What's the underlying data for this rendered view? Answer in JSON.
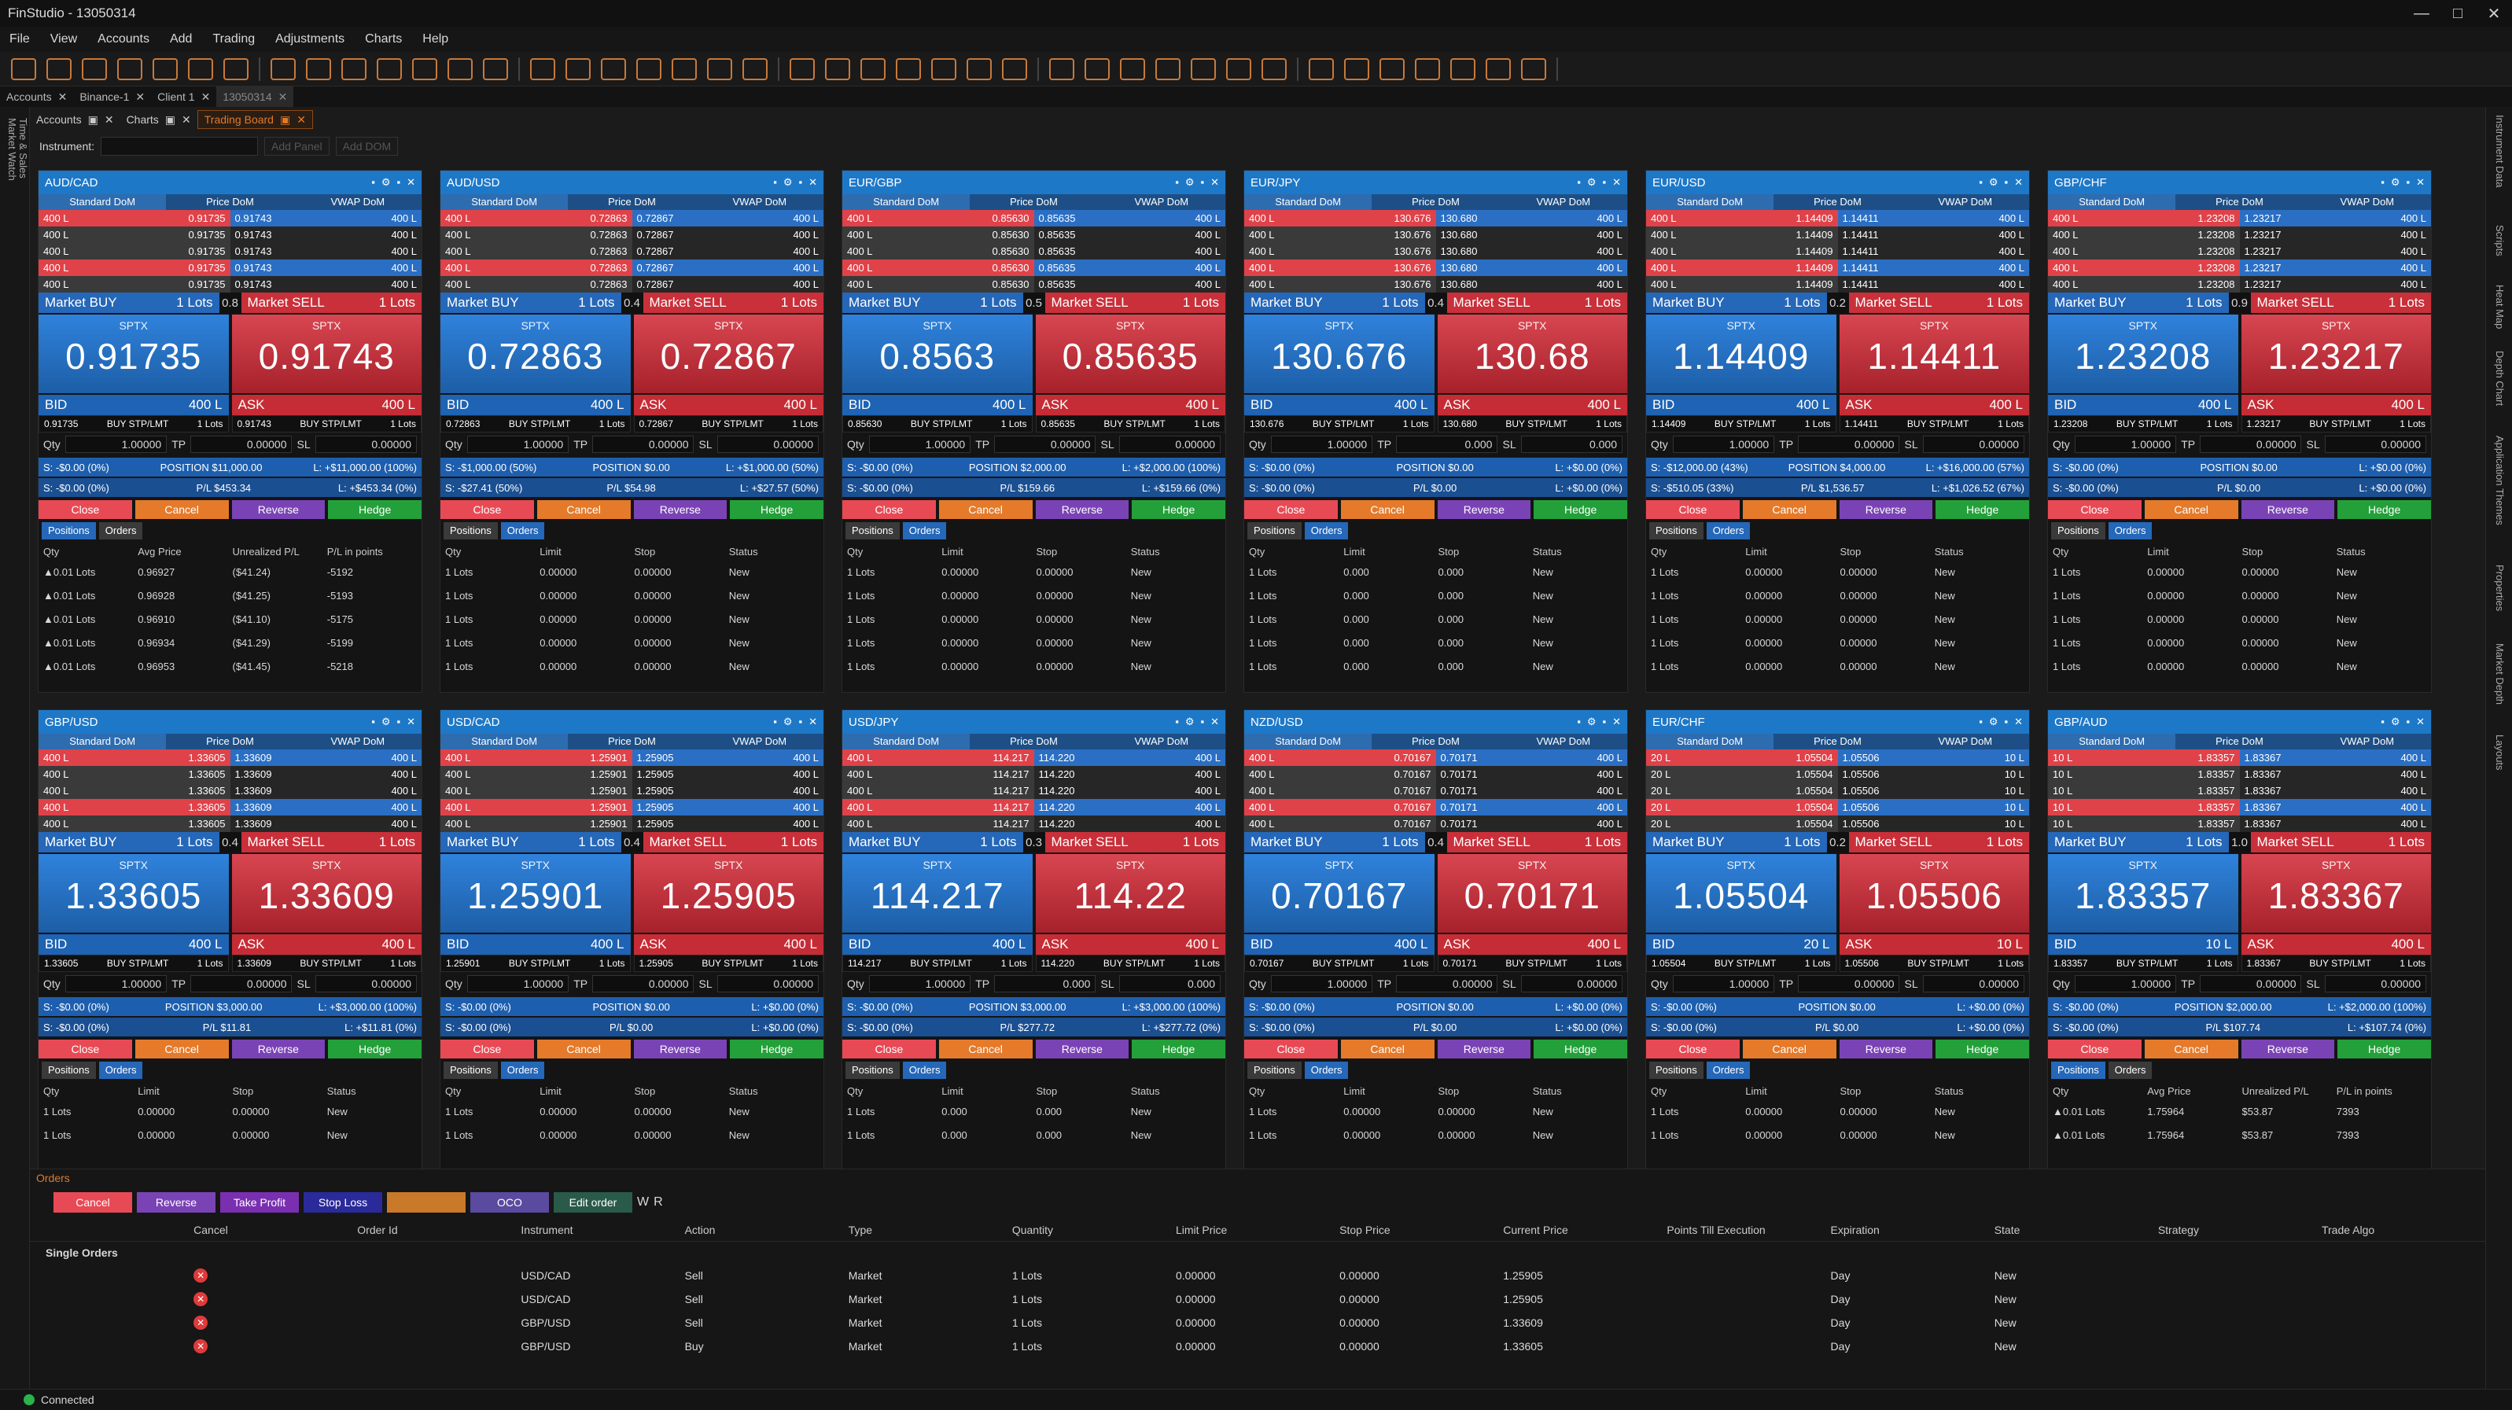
{
  "window": {
    "title": "FinStudio - 13050314",
    "minimize": "—",
    "maximize": "□",
    "close": "✕"
  },
  "menu": [
    "File",
    "View",
    "Accounts",
    "Add",
    "Trading",
    "Adjustments",
    "Charts",
    "Help"
  ],
  "toolbar_icons": [
    "gear-icon",
    "chart-icon",
    "list-icon",
    "table-icon",
    "grid-icon",
    "bars-icon",
    "heatmap-icon",
    "settings-icon"
  ],
  "workspace_tabs": [
    {
      "label": "Accounts"
    },
    {
      "label": "Binance-1"
    },
    {
      "label": "Client 1"
    },
    {
      "label": "13050314"
    }
  ],
  "doc_tabs": [
    "Accounts",
    "Charts",
    "Trading Board"
  ],
  "instrument": {
    "label": "Instrument:",
    "value": "",
    "add_panel": "Add Panel",
    "add_dom": "Add DOM"
  },
  "left_sidebar": [
    "Market Watch",
    "Time & Sales"
  ],
  "right_sidebar": [
    "Instrument Data",
    "Scripts",
    "Heat Map",
    "Depth Chart",
    "Application Themes",
    "Properties",
    "Market Depth",
    "Layouts"
  ],
  "dom_tabs": [
    "Standard DoM",
    "Price DoM",
    "VWAP DoM"
  ],
  "labels": {
    "market_buy": "Market BUY",
    "market_sell": "Market SELL",
    "sptx": "SPTX",
    "bid": "BID",
    "ask": "ASK",
    "stp": "BUY STP/LMT",
    "qty": "Qty",
    "tp": "TP",
    "sl": "SL",
    "close": "Close",
    "cancel": "Cancel",
    "reverse": "Reverse",
    "hedge": "Hedge",
    "positions": "Positions",
    "orders": "Orders"
  },
  "orders_table_hdr": [
    "Qty",
    "Limit",
    "Stop",
    "Status"
  ],
  "positions_table_hdr": [
    "Qty",
    "Avg Price",
    "Unrealized P/L",
    "P/L in points"
  ],
  "panels": [
    {
      "sym": "AUD/CAD",
      "spread": "0.8",
      "bid": "0.91735",
      "ask": "0.91743",
      "bidq": "400 L",
      "askq": "400 L",
      "bstp": "0.91735",
      "astp": "0.91743",
      "qty": "1.00000",
      "tpv": "0.00000",
      "slv": "0.00000",
      "pos": "POSITION $11,000.00",
      "pl": "L: +$11,000.00 (100%)",
      "s1": "S: -$0.00 (0%)",
      "s2": "S: -$0.00 (0%)",
      "pnl": "P/L $453.34",
      "pnl2": "L: +$453.34 (0%)",
      "tab": "positions",
      "rows": [
        [
          "▲0.01 Lots",
          "0.96927",
          "($41.24)",
          "-5192"
        ],
        [
          "▲0.01 Lots",
          "0.96928",
          "($41.25)",
          "-5193"
        ],
        [
          "▲0.01 Lots",
          "0.96910",
          "($41.10)",
          "-5175"
        ],
        [
          "▲0.01 Lots",
          "0.96934",
          "($41.29)",
          "-5199"
        ],
        [
          "▲0.01 Lots",
          "0.96953",
          "($41.45)",
          "-5218"
        ]
      ]
    },
    {
      "sym": "AUD/USD",
      "spread": "0.4",
      "bid": "0.72863",
      "ask": "0.72867",
      "bidq": "400 L",
      "askq": "400 L",
      "bstp": "0.72863",
      "astp": "0.72867",
      "qty": "1.00000",
      "tpv": "0.00000",
      "slv": "0.00000",
      "pos": "POSITION $0.00",
      "pl": "L: +$1,000.00 (50%)",
      "s1": "S: -$1,000.00 (50%)",
      "s2": "S: -$27.41 (50%)",
      "pnl": "P/L $54.98",
      "pnl2": "L: +$27.57 (50%)",
      "tab": "orders",
      "rows": [
        [
          "1 Lots",
          "0.00000",
          "0.00000",
          "New"
        ],
        [
          "1 Lots",
          "0.00000",
          "0.00000",
          "New"
        ],
        [
          "1 Lots",
          "0.00000",
          "0.00000",
          "New"
        ],
        [
          "1 Lots",
          "0.00000",
          "0.00000",
          "New"
        ],
        [
          "1 Lots",
          "0.00000",
          "0.00000",
          "New"
        ]
      ]
    },
    {
      "sym": "EUR/GBP",
      "spread": "0.5",
      "bid": "0.8563",
      "ask": "0.85635",
      "bidq": "400 L",
      "askq": "400 L",
      "bstp": "0.85630",
      "astp": "0.85635",
      "qty": "1.00000",
      "tpv": "0.00000",
      "slv": "0.00000",
      "pos": "POSITION $2,000.00",
      "pl": "L: +$2,000.00 (100%)",
      "s1": "S: -$0.00 (0%)",
      "s2": "S: -$0.00 (0%)",
      "pnl": "P/L $159.66",
      "pnl2": "L: +$159.66 (0%)",
      "tab": "orders",
      "rows": [
        [
          "1 Lots",
          "0.00000",
          "0.00000",
          "New"
        ],
        [
          "1 Lots",
          "0.00000",
          "0.00000",
          "New"
        ],
        [
          "1 Lots",
          "0.00000",
          "0.00000",
          "New"
        ],
        [
          "1 Lots",
          "0.00000",
          "0.00000",
          "New"
        ],
        [
          "1 Lots",
          "0.00000",
          "0.00000",
          "New"
        ]
      ]
    },
    {
      "sym": "EUR/JPY",
      "spread": "0.4",
      "bid": "130.676",
      "ask": "130.68",
      "bidq": "400 L",
      "askq": "400 L",
      "bstp": "130.676",
      "astp": "130.680",
      "qty": "1.00000",
      "tpv": "0.000",
      "slv": "0.000",
      "pos": "POSITION $0.00",
      "pl": "L: +$0.00 (0%)",
      "s1": "S: -$0.00 (0%)",
      "s2": "S: -$0.00 (0%)",
      "pnl": "P/L $0.00",
      "pnl2": "L: +$0.00 (0%)",
      "tab": "orders",
      "rows": [
        [
          "1 Lots",
          "0.000",
          "0.000",
          "New"
        ],
        [
          "1 Lots",
          "0.000",
          "0.000",
          "New"
        ],
        [
          "1 Lots",
          "0.000",
          "0.000",
          "New"
        ],
        [
          "1 Lots",
          "0.000",
          "0.000",
          "New"
        ],
        [
          "1 Lots",
          "0.000",
          "0.000",
          "New"
        ]
      ]
    },
    {
      "sym": "EUR/USD",
      "spread": "0.2",
      "bid": "1.14409",
      "ask": "1.14411",
      "bidq": "400 L",
      "askq": "400 L",
      "bstp": "1.14409",
      "astp": "1.14411",
      "qty": "1.00000",
      "tpv": "0.00000",
      "slv": "0.00000",
      "pos": "POSITION $4,000.00",
      "pl": "L: +$16,000.00 (57%)",
      "s1": "S: -$12,000.00 (43%)",
      "s2": "S: -$510.05 (33%)",
      "pnl": "P/L $1,536.57",
      "pnl2": "L: +$1,026.52 (67%)",
      "tab": "orders",
      "rows": [
        [
          "1 Lots",
          "0.00000",
          "0.00000",
          "New"
        ],
        [
          "1 Lots",
          "0.00000",
          "0.00000",
          "New"
        ],
        [
          "1 Lots",
          "0.00000",
          "0.00000",
          "New"
        ],
        [
          "1 Lots",
          "0.00000",
          "0.00000",
          "New"
        ],
        [
          "1 Lots",
          "0.00000",
          "0.00000",
          "New"
        ]
      ]
    },
    {
      "sym": "GBP/CHF",
      "spread": "0.9",
      "bid": "1.23208",
      "ask": "1.23217",
      "bidq": "400 L",
      "askq": "400 L",
      "bstp": "1.23208",
      "astp": "1.23217",
      "qty": "1.00000",
      "tpv": "0.00000",
      "slv": "0.00000",
      "pos": "POSITION $0.00",
      "pl": "L: +$0.00 (0%)",
      "s1": "S: -$0.00 (0%)",
      "s2": "S: -$0.00 (0%)",
      "pnl": "P/L $0.00",
      "pnl2": "L: +$0.00 (0%)",
      "tab": "orders",
      "rows": [
        [
          "1 Lots",
          "0.00000",
          "0.00000",
          "New"
        ],
        [
          "1 Lots",
          "0.00000",
          "0.00000",
          "New"
        ],
        [
          "1 Lots",
          "0.00000",
          "0.00000",
          "New"
        ],
        [
          "1 Lots",
          "0.00000",
          "0.00000",
          "New"
        ],
        [
          "1 Lots",
          "0.00000",
          "0.00000",
          "New"
        ]
      ]
    },
    {
      "sym": "GBP/USD",
      "spread": "0.4",
      "bid": "1.33605",
      "ask": "1.33609",
      "bidq": "400 L",
      "askq": "400 L",
      "bstp": "1.33605",
      "astp": "1.33609",
      "qty": "1.00000",
      "tpv": "0.00000",
      "slv": "0.00000",
      "pos": "POSITION $3,000.00",
      "pl": "L: +$3,000.00 (100%)",
      "s1": "S: -$0.00 (0%)",
      "s2": "S: -$0.00 (0%)",
      "pnl": "P/L $11.81",
      "pnl2": "L: +$11.81 (0%)",
      "tab": "orders",
      "rows": [
        [
          "1 Lots",
          "0.00000",
          "0.00000",
          "New"
        ],
        [
          "1 Lots",
          "0.00000",
          "0.00000",
          "New"
        ]
      ]
    },
    {
      "sym": "USD/CAD",
      "spread": "0.4",
      "bid": "1.25901",
      "ask": "1.25905",
      "bidq": "400 L",
      "askq": "400 L",
      "bstp": "1.25901",
      "astp": "1.25905",
      "qty": "1.00000",
      "tpv": "0.00000",
      "slv": "0.00000",
      "pos": "POSITION $0.00",
      "pl": "L: +$0.00 (0%)",
      "s1": "S: -$0.00 (0%)",
      "s2": "S: -$0.00 (0%)",
      "pnl": "P/L $0.00",
      "pnl2": "L: +$0.00 (0%)",
      "tab": "orders",
      "rows": [
        [
          "1 Lots",
          "0.00000",
          "0.00000",
          "New"
        ],
        [
          "1 Lots",
          "0.00000",
          "0.00000",
          "New"
        ]
      ]
    },
    {
      "sym": "USD/JPY",
      "spread": "0.3",
      "bid": "114.217",
      "ask": "114.22",
      "bidq": "400 L",
      "askq": "400 L",
      "bstp": "114.217",
      "astp": "114.220",
      "qty": "1.00000",
      "tpv": "0.000",
      "slv": "0.000",
      "pos": "POSITION $3,000.00",
      "pl": "L: +$3,000.00 (100%)",
      "s1": "S: -$0.00 (0%)",
      "s2": "S: -$0.00 (0%)",
      "pnl": "P/L $277.72",
      "pnl2": "L: +$277.72 (0%)",
      "tab": "orders",
      "rows": [
        [
          "1 Lots",
          "0.000",
          "0.000",
          "New"
        ],
        [
          "1 Lots",
          "0.000",
          "0.000",
          "New"
        ]
      ]
    },
    {
      "sym": "NZD/USD",
      "spread": "0.4",
      "bid": "0.70167",
      "ask": "0.70171",
      "bidq": "400 L",
      "askq": "400 L",
      "bstp": "0.70167",
      "astp": "0.70171",
      "qty": "1.00000",
      "tpv": "0.00000",
      "slv": "0.00000",
      "pos": "POSITION $0.00",
      "pl": "L: +$0.00 (0%)",
      "s1": "S: -$0.00 (0%)",
      "s2": "S: -$0.00 (0%)",
      "pnl": "P/L $0.00",
      "pnl2": "L: +$0.00 (0%)",
      "tab": "orders",
      "rows": [
        [
          "1 Lots",
          "0.00000",
          "0.00000",
          "New"
        ],
        [
          "1 Lots",
          "0.00000",
          "0.00000",
          "New"
        ]
      ]
    },
    {
      "sym": "EUR/CHF",
      "spread": "0.2",
      "bid": "1.05504",
      "ask": "1.05506",
      "bidq": "20 L",
      "askq": "10 L",
      "bstp": "1.05504",
      "astp": "1.05506",
      "qty": "1.00000",
      "tpv": "0.00000",
      "slv": "0.00000",
      "pos": "POSITION $0.00",
      "pl": "L: +$0.00 (0%)",
      "s1": "S: -$0.00 (0%)",
      "s2": "S: -$0.00 (0%)",
      "pnl": "P/L $0.00",
      "pnl2": "L: +$0.00 (0%)",
      "tab": "orders",
      "rows": [
        [
          "1 Lots",
          "0.00000",
          "0.00000",
          "New"
        ],
        [
          "1 Lots",
          "0.00000",
          "0.00000",
          "New"
        ]
      ]
    },
    {
      "sym": "GBP/AUD",
      "spread": "1.0",
      "bid": "1.83357",
      "ask": "1.83367",
      "bidq": "10 L",
      "askq": "400 L",
      "bstp": "1.83357",
      "astp": "1.83367",
      "qty": "1.00000",
      "tpv": "0.00000",
      "slv": "0.00000",
      "pos": "POSITION $2,000.00",
      "pl": "L: +$2,000.00 (100%)",
      "s1": "S: -$0.00 (0%)",
      "s2": "S: -$0.00 (0%)",
      "pnl": "P/L $107.74",
      "pnl2": "L: +$107.74 (0%)",
      "tab": "positions",
      "rows": [
        [
          "▲0.01 Lots",
          "1.75964",
          "$53.87",
          "7393"
        ],
        [
          "▲0.01 Lots",
          "1.75964",
          "$53.87",
          "7393"
        ]
      ]
    }
  ],
  "orders_pane": {
    "title": "Orders",
    "buttons": [
      {
        "label": "Cancel",
        "color": "#e84a55"
      },
      {
        "label": "Reverse",
        "color": "#7a43b5"
      },
      {
        "label": "Take Profit",
        "color": "#7a2fb0"
      },
      {
        "label": "Stop Loss",
        "color": "#2a2a9a"
      },
      {
        "label": "",
        "color": "#c8792a"
      },
      {
        "label": "OCO",
        "color": "#5a4aa0"
      },
      {
        "label": "Edit order",
        "color": "#2a5a4a"
      }
    ],
    "extra": [
      "W",
      "R"
    ],
    "columns": [
      "Cancel",
      "Order Id",
      "Instrument",
      "Action",
      "Type",
      "Quantity",
      "Limit Price",
      "Stop Price",
      "Current Price",
      "Points Till Execution",
      "Expiration",
      "State",
      "Strategy",
      "Trade Algo"
    ],
    "group": "Single Orders",
    "rows": [
      [
        "",
        "",
        "USD/CAD",
        "Sell",
        "Market",
        "1 Lots",
        "0.00000",
        "0.00000",
        "1.25905",
        "",
        "Day",
        "New",
        "",
        ""
      ],
      [
        "",
        "",
        "USD/CAD",
        "Sell",
        "Market",
        "1 Lots",
        "0.00000",
        "0.00000",
        "1.25905",
        "",
        "Day",
        "New",
        "",
        ""
      ],
      [
        "",
        "",
        "GBP/USD",
        "Sell",
        "Market",
        "1 Lots",
        "0.00000",
        "0.00000",
        "1.33609",
        "",
        "Day",
        "New",
        "",
        ""
      ],
      [
        "",
        "",
        "GBP/USD",
        "Buy",
        "Market",
        "1 Lots",
        "0.00000",
        "0.00000",
        "1.33605",
        "",
        "Day",
        "New",
        "",
        ""
      ]
    ]
  },
  "status": {
    "text": "Connected"
  }
}
